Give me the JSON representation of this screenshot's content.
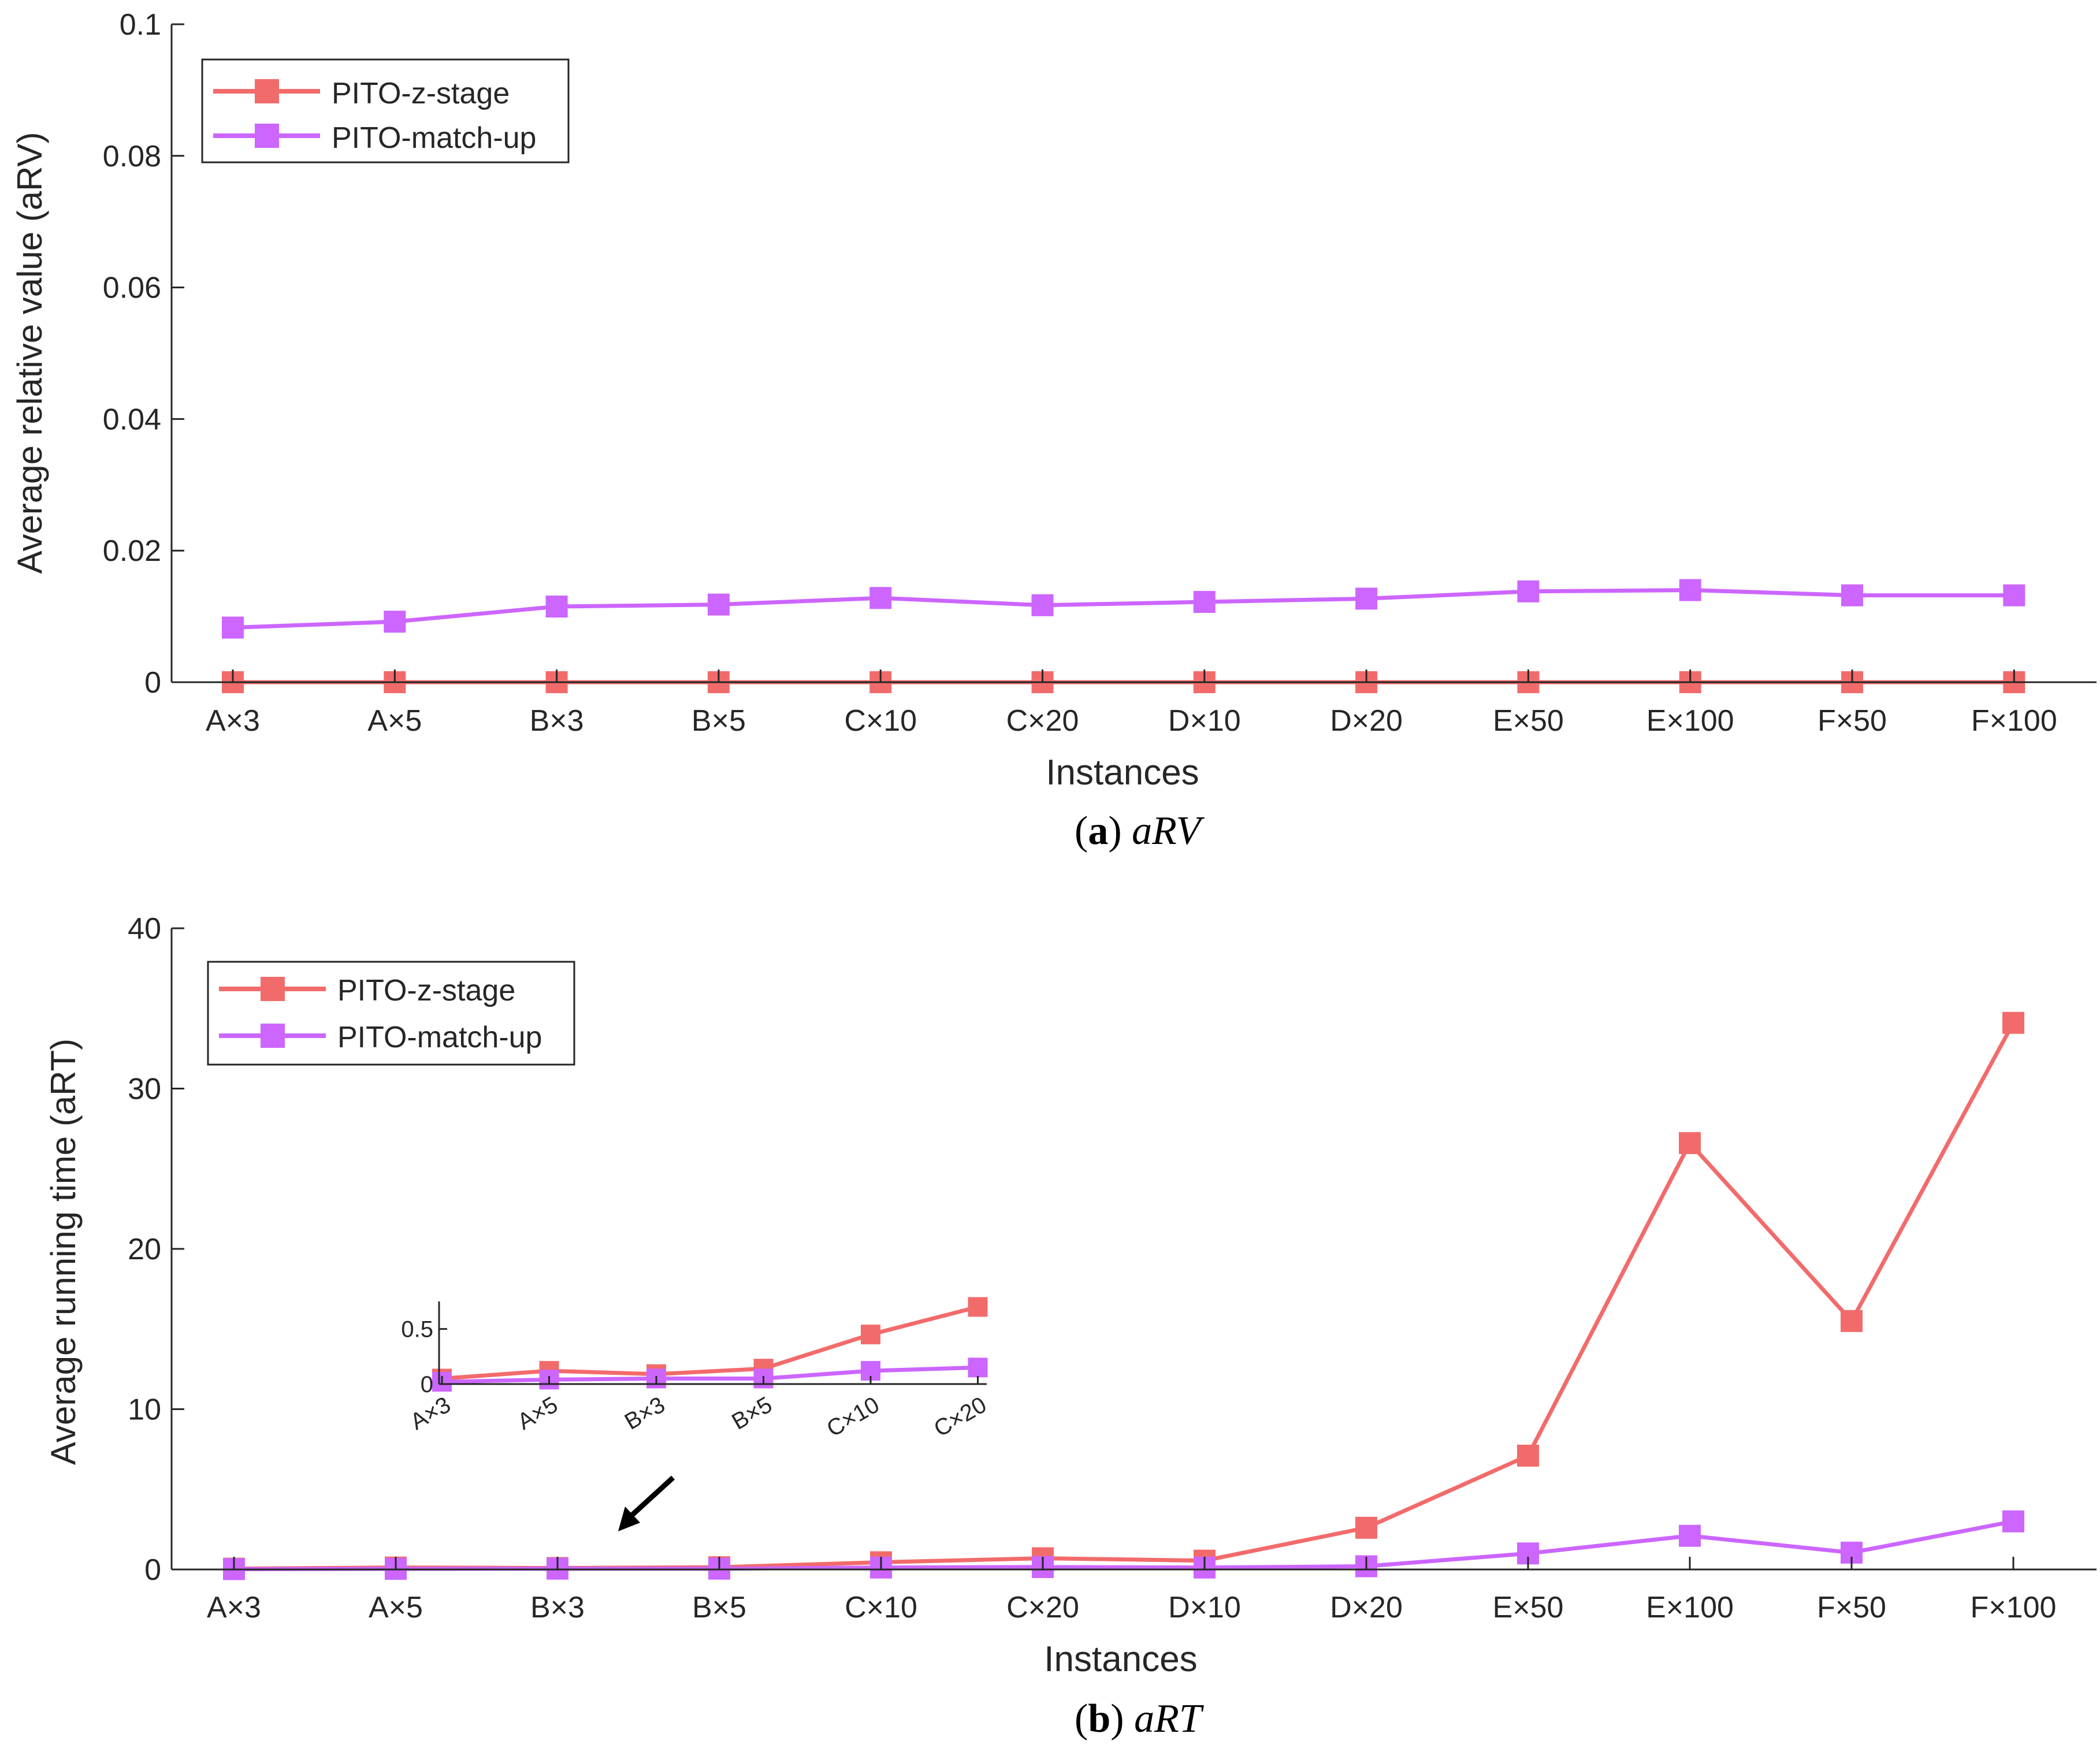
{
  "colors": {
    "z_stage": "#f26b6b",
    "match_up": "#cc66ff",
    "axis": "#262626",
    "arrow": "#000000"
  },
  "chart_data": [
    {
      "type": "line",
      "panel": "a",
      "caption_letter": "a",
      "caption_metric": "aRV",
      "xlabel": "Instances",
      "ylabel": "Average relative value (aRV)",
      "categories": [
        "A×3",
        "A×5",
        "B×3",
        "B×5",
        "C×10",
        "C×20",
        "D×10",
        "D×20",
        "E×50",
        "E×100",
        "F×50",
        "F×100"
      ],
      "ylim": [
        0,
        0.1
      ],
      "yticks": [
        0,
        0.02,
        0.04,
        0.06,
        0.08,
        0.1
      ],
      "ytick_labels": [
        "0",
        "0.02",
        "0.04",
        "0.06",
        "0.08",
        "0.1"
      ],
      "legend_position": "top-left",
      "series": [
        {
          "name": "PITO-z-stage",
          "color_key": "z_stage",
          "values": [
            0,
            0,
            0,
            0,
            0,
            0,
            0,
            0,
            0,
            0,
            0,
            0
          ]
        },
        {
          "name": "PITO-match-up",
          "color_key": "match_up",
          "values": [
            0.0083,
            0.0092,
            0.0115,
            0.0118,
            0.0128,
            0.0117,
            0.0122,
            0.0127,
            0.0138,
            0.014,
            0.0132,
            0.0132
          ]
        }
      ]
    },
    {
      "type": "line",
      "panel": "b",
      "caption_letter": "b",
      "caption_metric": "aRT",
      "xlabel": "Instances",
      "ylabel": "Average running time (aRT)",
      "categories": [
        "A×3",
        "A×5",
        "B×3",
        "B×5",
        "C×10",
        "C×20",
        "D×10",
        "D×20",
        "E×50",
        "E×100",
        "F×50",
        "F×100"
      ],
      "ylim": [
        0,
        40
      ],
      "yticks": [
        0,
        10,
        20,
        30,
        40
      ],
      "ytick_labels": [
        "0",
        "10",
        "20",
        "30",
        "40"
      ],
      "legend_position": "top-left",
      "series": [
        {
          "name": "PITO-z-stage",
          "color_key": "z_stage",
          "values": [
            0.05,
            0.12,
            0.09,
            0.14,
            0.45,
            0.7,
            0.55,
            2.6,
            7.1,
            26.6,
            15.5,
            34.1
          ]
        },
        {
          "name": "PITO-match-up",
          "color_key": "match_up",
          "values": [
            0.02,
            0.04,
            0.05,
            0.05,
            0.12,
            0.15,
            0.12,
            0.2,
            1.0,
            2.1,
            1.05,
            3.0
          ]
        }
      ],
      "inset": {
        "categories": [
          "A×3",
          "A×5",
          "B×3",
          "B×5",
          "C×10",
          "C×20"
        ],
        "ylim": [
          0,
          0.75
        ],
        "yticks": [
          0,
          0.5
        ],
        "ytick_labels": [
          "0",
          "0.5"
        ],
        "series": [
          {
            "name": "PITO-z-stage",
            "color_key": "z_stage",
            "values": [
              0.05,
              0.12,
              0.09,
              0.14,
              0.45,
              0.7
            ]
          },
          {
            "name": "PITO-match-up",
            "color_key": "match_up",
            "values": [
              0.02,
              0.04,
              0.05,
              0.05,
              0.12,
              0.15
            ]
          }
        ]
      }
    }
  ]
}
